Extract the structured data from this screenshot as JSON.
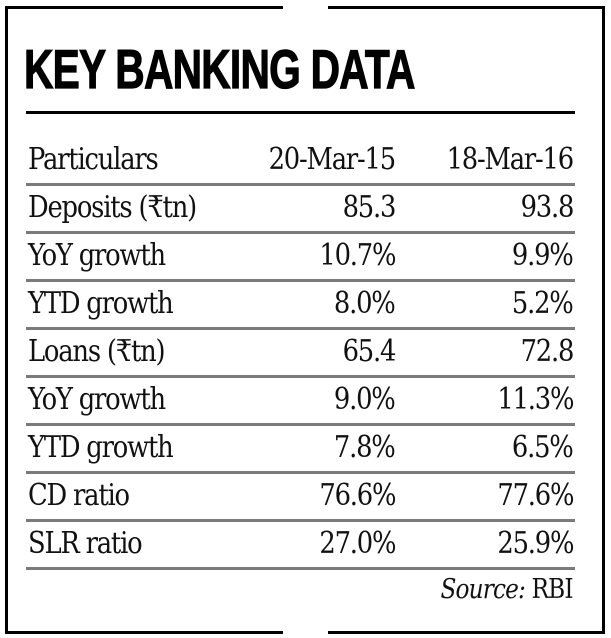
{
  "title": "KEY BANKING DATA",
  "table": {
    "columns": [
      "Particulars",
      "20-Mar-15",
      "18-Mar-16"
    ],
    "rows": [
      {
        "label": "Deposits (₹tn)",
        "v1": "85.3",
        "v2": "93.8"
      },
      {
        "label": "YoY growth",
        "v1": "10.7%",
        "v2": "9.9%"
      },
      {
        "label": "YTD growth",
        "v1": "8.0%",
        "v2": "5.2%"
      },
      {
        "label": "Loans (₹tn)",
        "v1": "65.4",
        "v2": "72.8"
      },
      {
        "label": "YoY growth",
        "v1": "9.0%",
        "v2": "11.3%"
      },
      {
        "label": "YTD growth",
        "v1": "7.8%",
        "v2": "6.5%"
      },
      {
        "label": "CD ratio",
        "v1": "76.6%",
        "v2": "77.6%"
      },
      {
        "label": "SLR ratio",
        "v1": "27.0%",
        "v2": "25.9%"
      }
    ]
  },
  "source": {
    "label": "Source:",
    "value": " RBI"
  },
  "colors": {
    "text": "#111111",
    "border": "#000000",
    "row_rule": "#7a7a7a",
    "background": "#ffffff"
  },
  "chart_data": {
    "type": "table",
    "title": "KEY BANKING DATA",
    "columns": [
      "Particulars",
      "20-Mar-15",
      "18-Mar-16"
    ],
    "rows": [
      [
        "Deposits (₹tn)",
        85.3,
        93.8
      ],
      [
        "YoY growth (deposits, %)",
        10.7,
        9.9
      ],
      [
        "YTD growth (deposits, %)",
        8.0,
        5.2
      ],
      [
        "Loans (₹tn)",
        65.4,
        72.8
      ],
      [
        "YoY growth (loans, %)",
        9.0,
        11.3
      ],
      [
        "YTD growth (loans, %)",
        7.8,
        6.5
      ],
      [
        "CD ratio (%)",
        76.6,
        77.6
      ],
      [
        "SLR ratio (%)",
        27.0,
        25.9
      ]
    ],
    "source": "RBI"
  }
}
